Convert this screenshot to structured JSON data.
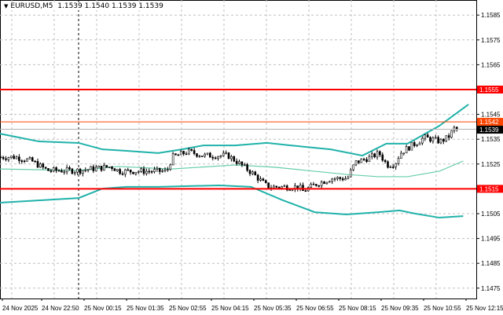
{
  "header": {
    "symbol": "EURUSD,M5",
    "ohlc": "1.1539 1.1540 1.1539 1.1539",
    "collapse_icon": "triangle-down-icon"
  },
  "chart_data": {
    "type": "candlestick",
    "title": "EURUSD,M5",
    "ylim": [
      1.147,
      1.159
    ],
    "grid": true,
    "y_ticks": [
      "1.1585",
      "1.1575",
      "1.1565",
      "1.1555",
      "1.1545",
      "1.1535",
      "1.1525",
      "1.1515",
      "1.1505",
      "1.1495",
      "1.1485",
      "1.1475"
    ],
    "x_tick_labels": [
      "24 Nov 2025",
      "24 Nov 22:50",
      "25 Nov 00:15",
      "25 Nov 01:35",
      "25 Nov 02:55",
      "25 Nov 04:15",
      "25 Nov 05:35",
      "25 Nov 06:55",
      "25 Nov 08:15",
      "25 Nov 09:35",
      "25 Nov 10:55",
      "25 Nov 12:15"
    ],
    "day_separator": "25 Nov 00:00",
    "close_path": [
      [
        "21:30",
        1.15278
      ],
      [
        "22:00",
        1.15278
      ],
      [
        "22:30",
        1.15262
      ],
      [
        "23:00",
        1.15224
      ],
      [
        "00:00",
        1.15224
      ],
      [
        "01:00",
        1.1524
      ],
      [
        "01:15",
        1.15221
      ],
      [
        "02:45",
        1.15221
      ],
      [
        "02:55",
        1.15278
      ],
      [
        "03:25",
        1.153
      ],
      [
        "03:55",
        1.15284
      ],
      [
        "04:40",
        1.15284
      ],
      [
        "04:55",
        1.15262
      ],
      [
        "05:25",
        1.15215
      ],
      [
        "05:55",
        1.15158
      ],
      [
        "06:55",
        1.15158
      ],
      [
        "07:00",
        1.15139
      ],
      [
        "07:25",
        1.15168
      ],
      [
        "07:55",
        1.15192
      ],
      [
        "08:25",
        1.15192
      ],
      [
        "08:40",
        1.15256
      ],
      [
        "09:10",
        1.15278
      ],
      [
        "09:25",
        1.15294
      ],
      [
        "09:40",
        1.15246
      ],
      [
        "09:55",
        1.15252
      ],
      [
        "10:05",
        1.15294
      ],
      [
        "10:20",
        1.15316
      ],
      [
        "10:35",
        1.15335
      ],
      [
        "10:50",
        1.15357
      ],
      [
        "11:20",
        1.15341
      ],
      [
        "11:35",
        1.15357
      ],
      [
        "11:50",
        1.15404
      ],
      [
        "11:55",
        1.1539
      ]
    ],
    "bollinger": {
      "upper": [
        [
          "21:30",
          1.15373
        ],
        [
          "22:45",
          1.15341
        ],
        [
          "00:00",
          1.15335
        ],
        [
          "00:45",
          1.15309
        ],
        [
          "01:30",
          1.15303
        ],
        [
          "02:30",
          1.15294
        ],
        [
          "03:15",
          1.15309
        ],
        [
          "03:55",
          1.15325
        ],
        [
          "04:55",
          1.15325
        ],
        [
          "05:55",
          1.15335
        ],
        [
          "06:40",
          1.15325
        ],
        [
          "07:55",
          1.15309
        ],
        [
          "08:55",
          1.15284
        ],
        [
          "09:40",
          1.15332
        ],
        [
          "10:20",
          1.15332
        ],
        [
          "11:20",
          1.15404
        ],
        [
          "12:15",
          1.1549
        ]
      ],
      "middle": [
        [
          "21:30",
          1.1523
        ],
        [
          "00:00",
          1.15224
        ],
        [
          "01:15",
          1.1524
        ],
        [
          "02:55",
          1.1523
        ],
        [
          "04:55",
          1.15246
        ],
        [
          "06:10",
          1.15237
        ],
        [
          "08:25",
          1.15208
        ],
        [
          "09:25",
          1.15199
        ],
        [
          "10:20",
          1.15199
        ],
        [
          "11:20",
          1.15221
        ],
        [
          "12:05",
          1.15262
        ]
      ],
      "lower": [
        [
          "21:30",
          1.15094
        ],
        [
          "00:00",
          1.15113
        ],
        [
          "00:45",
          1.15151
        ],
        [
          "01:30",
          1.15158
        ],
        [
          "02:30",
          1.15158
        ],
        [
          "04:25",
          1.15164
        ],
        [
          "05:25",
          1.15158
        ],
        [
          "06:25",
          1.15104
        ],
        [
          "07:25",
          1.15056
        ],
        [
          "08:25",
          1.15047
        ],
        [
          "09:25",
          1.15056
        ],
        [
          "10:05",
          1.15063
        ],
        [
          "10:35",
          1.1505
        ],
        [
          "11:20",
          1.15034
        ],
        [
          "12:05",
          1.1504
        ]
      ]
    },
    "levels": [
      {
        "price": 1.1555,
        "label": "1.1555",
        "color": "#ff0000",
        "kind": "resistance"
      },
      {
        "price": 1.1515,
        "label": "1.1515",
        "color": "#ff0000",
        "kind": "support"
      },
      {
        "price": 1.1542,
        "label": "1.1542",
        "color": "#ff4500",
        "kind": "ask"
      },
      {
        "price": 1.1539,
        "label": "1.1539",
        "color": "#000000",
        "kind": "bid"
      }
    ],
    "colors": {
      "band_outer": "#20b2aa",
      "band_middle": "#66cdaa",
      "candle": "#000000",
      "grid": "#c0c0c0"
    }
  }
}
